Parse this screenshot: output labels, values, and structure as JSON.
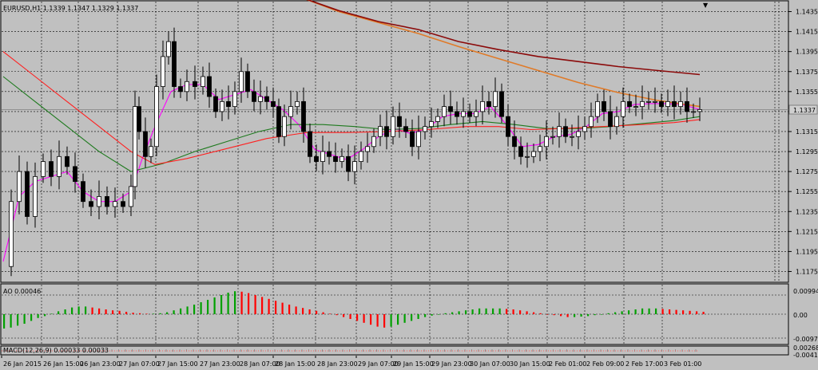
{
  "window": {
    "symbol_info": "EURUSD,H1  1.1339 1.1347 1.1329 1.1337",
    "current_price": "1.1337"
  },
  "colors": {
    "background": "#c0c0c0",
    "grid": "#000000",
    "candle_up": "#ffffff",
    "candle_down": "#000000",
    "ma_fast": "#ff00ff",
    "ma_mid_green": "#1e7a1e",
    "ma_mid_red": "#ff2020",
    "ma_slow_orange": "#e07a28",
    "ma_slow_maroon": "#8b0a0a",
    "ao_up": "#00a000",
    "ao_down": "#ff0000",
    "price_tag_bg": "#cfcfcf"
  },
  "price_axis": {
    "labels": [
      "1.1435",
      "1.1415",
      "1.1395",
      "1.1375",
      "1.1355",
      "1.1335",
      "1.1315",
      "1.1295",
      "1.1275",
      "1.1255",
      "1.1235",
      "1.1215",
      "1.1195",
      "1.1175"
    ]
  },
  "time_axis": {
    "labels": [
      "26 Jan 2015",
      "26 Jan 15:00",
      "26 Jan 23:00",
      "27 Jan 07:00",
      "27 Jan 15:00",
      "27 Jan 23:00",
      "28 Jan 07:00",
      "28 Jan 15:00",
      "28 Jan 23:00",
      "29 Jan 07:00",
      "29 Jan 15:00",
      "29 Jan 23:00",
      "30 Jan 07:00",
      "30 Jan 15:00",
      "2 Feb 01:00",
      "2 Feb 09:00",
      "2 Feb 17:00",
      "3 Feb 01:00"
    ]
  },
  "ao_panel": {
    "title": "AO 0.00046",
    "labels": [
      "0.00994",
      "0.00",
      "-0.00973"
    ]
  },
  "macd_panel": {
    "title": "MACD(12,26,9) 0.00033 0.00033",
    "labels": [
      "0.00268",
      "-0.00413"
    ]
  },
  "chart_data": {
    "type": "candlestick",
    "symbol": "EURUSD",
    "timeframe": "H1",
    "ylim": [
      1.1165,
      1.1445
    ],
    "last": {
      "open": 1.1339,
      "high": 1.1347,
      "low": 1.1329,
      "close": 1.1337
    },
    "close_path": [
      [
        0,
        1.118
      ],
      [
        10,
        1.1245
      ],
      [
        20,
        1.1275
      ],
      [
        30,
        1.123
      ],
      [
        40,
        1.127
      ],
      [
        50,
        1.1285
      ],
      [
        60,
        1.127
      ],
      [
        70,
        1.129
      ],
      [
        80,
        1.128
      ],
      [
        90,
        1.1265
      ],
      [
        100,
        1.1245
      ],
      [
        110,
        1.124
      ],
      [
        120,
        1.125
      ],
      [
        130,
        1.124
      ],
      [
        140,
        1.1245
      ],
      [
        150,
        1.124
      ],
      [
        160,
        1.126
      ],
      [
        165,
        1.134
      ],
      [
        170,
        1.1315
      ],
      [
        178,
        1.129
      ],
      [
        185,
        1.13
      ],
      [
        192,
        1.136
      ],
      [
        200,
        1.139
      ],
      [
        207,
        1.1405
      ],
      [
        214,
        1.136
      ],
      [
        222,
        1.1355
      ],
      [
        230,
        1.1365
      ],
      [
        240,
        1.136
      ],
      [
        250,
        1.137
      ],
      [
        258,
        1.135
      ],
      [
        266,
        1.1335
      ],
      [
        274,
        1.1345
      ],
      [
        282,
        1.134
      ],
      [
        290,
        1.1355
      ],
      [
        298,
        1.1375
      ],
      [
        306,
        1.1355
      ],
      [
        314,
        1.1345
      ],
      [
        322,
        1.135
      ],
      [
        330,
        1.1345
      ],
      [
        338,
        1.134
      ],
      [
        345,
        1.131
      ],
      [
        352,
        1.133
      ],
      [
        360,
        1.134
      ],
      [
        368,
        1.1345
      ],
      [
        376,
        1.1315
      ],
      [
        384,
        1.129
      ],
      [
        392,
        1.1285
      ],
      [
        400,
        1.1295
      ],
      [
        408,
        1.129
      ],
      [
        416,
        1.1285
      ],
      [
        424,
        1.129
      ],
      [
        432,
        1.1275
      ],
      [
        440,
        1.1285
      ],
      [
        448,
        1.1295
      ],
      [
        456,
        1.13
      ],
      [
        464,
        1.131
      ],
      [
        472,
        1.132
      ],
      [
        480,
        1.131
      ],
      [
        488,
        1.133
      ],
      [
        496,
        1.132
      ],
      [
        504,
        1.1315
      ],
      [
        512,
        1.13
      ],
      [
        520,
        1.1315
      ],
      [
        528,
        1.132
      ],
      [
        536,
        1.1325
      ],
      [
        544,
        1.133
      ],
      [
        552,
        1.134
      ],
      [
        560,
        1.1335
      ],
      [
        568,
        1.133
      ],
      [
        576,
        1.1335
      ],
      [
        584,
        1.133
      ],
      [
        592,
        1.1335
      ],
      [
        600,
        1.1345
      ],
      [
        608,
        1.134
      ],
      [
        616,
        1.1355
      ],
      [
        624,
        1.133
      ],
      [
        632,
        1.131
      ],
      [
        640,
        1.13
      ],
      [
        648,
        1.129
      ],
      [
        656,
        1.129
      ],
      [
        664,
        1.1295
      ],
      [
        672,
        1.13
      ],
      [
        680,
        1.131
      ],
      [
        688,
        1.131
      ],
      [
        696,
        1.132
      ],
      [
        704,
        1.131
      ],
      [
        712,
        1.131
      ],
      [
        720,
        1.1315
      ],
      [
        728,
        1.132
      ],
      [
        736,
        1.133
      ],
      [
        744,
        1.1345
      ],
      [
        752,
        1.1335
      ],
      [
        760,
        1.132
      ],
      [
        768,
        1.133
      ],
      [
        776,
        1.1345
      ],
      [
        784,
        1.134
      ],
      [
        792,
        1.134
      ],
      [
        800,
        1.1345
      ],
      [
        808,
        1.1345
      ],
      [
        816,
        1.1345
      ],
      [
        824,
        1.134
      ],
      [
        832,
        1.1345
      ],
      [
        840,
        1.134
      ],
      [
        848,
        1.1345
      ],
      [
        856,
        1.1335
      ],
      [
        864,
        1.1335
      ],
      [
        872,
        1.1337
      ]
    ],
    "moving_averages": {
      "ma_fast": [
        [
          0,
          1.1185
        ],
        [
          20,
          1.125
        ],
        [
          40,
          1.1265
        ],
        [
          60,
          1.127
        ],
        [
          80,
          1.1275
        ],
        [
          100,
          1.1255
        ],
        [
          120,
          1.1245
        ],
        [
          140,
          1.1245
        ],
        [
          160,
          1.1255
        ],
        [
          175,
          1.129
        ],
        [
          190,
          1.132
        ],
        [
          210,
          1.1355
        ],
        [
          230,
          1.1362
        ],
        [
          250,
          1.1362
        ],
        [
          270,
          1.1347
        ],
        [
          290,
          1.1352
        ],
        [
          310,
          1.1357
        ],
        [
          330,
          1.1347
        ],
        [
          350,
          1.1337
        ],
        [
          370,
          1.1322
        ],
        [
          390,
          1.1297
        ],
        [
          410,
          1.1292
        ],
        [
          430,
          1.1287
        ],
        [
          450,
          1.1297
        ],
        [
          470,
          1.131
        ],
        [
          490,
          1.1318
        ],
        [
          510,
          1.1313
        ],
        [
          530,
          1.1318
        ],
        [
          550,
          1.133
        ],
        [
          570,
          1.1333
        ],
        [
          590,
          1.1333
        ],
        [
          610,
          1.134
        ],
        [
          630,
          1.1322
        ],
        [
          650,
          1.13
        ],
        [
          670,
          1.1302
        ],
        [
          690,
          1.131
        ],
        [
          710,
          1.1312
        ],
        [
          730,
          1.132
        ],
        [
          750,
          1.1333
        ],
        [
          770,
          1.1335
        ],
        [
          790,
          1.1342
        ],
        [
          810,
          1.1343
        ],
        [
          830,
          1.1343
        ],
        [
          850,
          1.1342
        ],
        [
          872,
          1.1337
        ]
      ],
      "ma_mid_green": [
        [
          0,
          1.137
        ],
        [
          40,
          1.1345
        ],
        [
          80,
          1.132
        ],
        [
          120,
          1.1295
        ],
        [
          160,
          1.1275
        ],
        [
          200,
          1.1283
        ],
        [
          240,
          1.1295
        ],
        [
          280,
          1.1305
        ],
        [
          320,
          1.1315
        ],
        [
          360,
          1.1322
        ],
        [
          400,
          1.1322
        ],
        [
          440,
          1.132
        ],
        [
          480,
          1.1317
        ],
        [
          520,
          1.1318
        ],
        [
          560,
          1.1322
        ],
        [
          600,
          1.1325
        ],
        [
          640,
          1.1322
        ],
        [
          680,
          1.1318
        ],
        [
          720,
          1.1318
        ],
        [
          760,
          1.132
        ],
        [
          800,
          1.1323
        ],
        [
          840,
          1.1326
        ],
        [
          872,
          1.133
        ]
      ],
      "ma_mid_red": [
        [
          0,
          1.1395
        ],
        [
          40,
          1.137
        ],
        [
          80,
          1.1345
        ],
        [
          120,
          1.132
        ],
        [
          160,
          1.1295
        ],
        [
          190,
          1.1282
        ],
        [
          230,
          1.1288
        ],
        [
          280,
          1.1298
        ],
        [
          330,
          1.1308
        ],
        [
          380,
          1.1314
        ],
        [
          430,
          1.1314
        ],
        [
          480,
          1.1315
        ],
        [
          530,
          1.1317
        ],
        [
          580,
          1.132
        ],
        [
          620,
          1.132
        ],
        [
          660,
          1.1317
        ],
        [
          700,
          1.1318
        ],
        [
          750,
          1.132
        ],
        [
          800,
          1.1322
        ],
        [
          840,
          1.1324
        ],
        [
          872,
          1.1327
        ]
      ],
      "ma_slow_orange": [
        [
          370,
          1.145
        ],
        [
          420,
          1.1435
        ],
        [
          470,
          1.1424
        ],
        [
          520,
          1.1413
        ],
        [
          570,
          1.14
        ],
        [
          620,
          1.1388
        ],
        [
          670,
          1.1376
        ],
        [
          720,
          1.1364
        ],
        [
          770,
          1.1354
        ],
        [
          820,
          1.1346
        ],
        [
          872,
          1.134
        ]
      ],
      "ma_slow_maroon": [
        [
          370,
          1.145
        ],
        [
          420,
          1.1436
        ],
        [
          470,
          1.1425
        ],
        [
          520,
          1.1417
        ],
        [
          570,
          1.1405
        ],
        [
          620,
          1.1397
        ],
        [
          670,
          1.139
        ],
        [
          720,
          1.1385
        ],
        [
          770,
          1.138
        ],
        [
          820,
          1.1376
        ],
        [
          872,
          1.1372
        ]
      ]
    },
    "ao_values": [
      -0.003,
      -0.0028,
      -0.0024,
      -0.002,
      -0.0014,
      -0.0008,
      -0.0004,
      0.0001,
      0.0006,
      0.001,
      0.0014,
      0.0016,
      0.0016,
      0.0014,
      0.0012,
      0.001,
      0.0008,
      0.0007,
      0.0005,
      0.0003,
      0.0002,
      0.0001,
      0.0001,
      0.0002,
      0.0004,
      0.0008,
      0.0012,
      0.0016,
      0.002,
      0.0025,
      0.003,
      0.0035,
      0.004,
      0.0045,
      0.0048,
      0.0047,
      0.0044,
      0.004,
      0.0036,
      0.0032,
      0.0028,
      0.0024,
      0.002,
      0.0016,
      0.0013,
      0.001,
      0.0007,
      0.0004,
      0.0001,
      -0.0002,
      -0.0006,
      -0.001,
      -0.0014,
      -0.0018,
      -0.0022,
      -0.0026,
      -0.0028,
      -0.0026,
      -0.0022,
      -0.0018,
      -0.0014,
      -0.001,
      -0.0006,
      -0.0003,
      -0.0001,
      0.0002,
      0.0004,
      0.0006,
      0.0008,
      0.001,
      0.0012,
      0.0012,
      0.0012,
      0.0012,
      0.0011,
      0.001,
      0.0008,
      0.0006,
      0.0004,
      0.0002,
      0.0,
      -0.0002,
      -0.0004,
      -0.0006,
      -0.0006,
      -0.0005,
      -0.0004,
      -0.0002,
      0.0,
      0.0002,
      0.0004,
      0.0006,
      0.0008,
      0.001,
      0.0012,
      0.0012,
      0.0012,
      0.0011,
      0.001,
      0.0009,
      0.0008,
      0.0007,
      0.0006,
      0.0005
    ]
  }
}
